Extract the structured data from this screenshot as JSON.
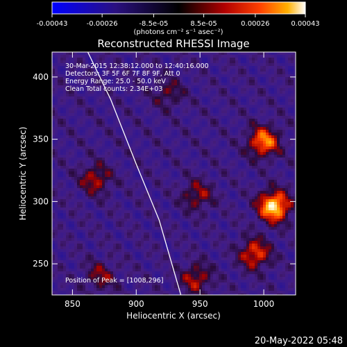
{
  "chart_data": {
    "type": "heatmap",
    "title": "Reconstructed RHESSI Image",
    "xlabel": "Heliocentric X (arcsec)",
    "ylabel": "Heliocentric Y (arcsec)",
    "xlim": [
      834,
      1025
    ],
    "ylim": [
      225,
      420
    ],
    "xticks": [
      850,
      900,
      950,
      1000
    ],
    "yticks": [
      250,
      300,
      350,
      400
    ],
    "xtick_labels": [
      "850",
      "900",
      "950",
      "1000"
    ],
    "ytick_labels": [
      "250",
      "300",
      "350",
      "400"
    ],
    "colorbar": {
      "range": [
        -0.00043,
        0.00043
      ],
      "tick_values": [
        -0.00043,
        -0.00026,
        -8.5e-05,
        8.5e-05,
        0.00026,
        0.00043
      ],
      "tick_labels": [
        "-0.00043",
        "-0.00026",
        "-8.5e-05",
        "8.5e-05",
        "0.00026",
        "0.00043"
      ],
      "unit_label": "(photons cm⁻² s⁻¹ asec⁻²)",
      "colors": [
        "#0000ff",
        "#3a1aa0",
        "#000000",
        "#a00000",
        "#ff3000",
        "#ffa000",
        "#ffffff"
      ]
    },
    "annotations": {
      "time_range": "30-Mar-2015 12:38:12.000 to 12:40:16.000",
      "detectors": "Detectors: 3F 5F 6F 7F 8F 9F, Att 0",
      "energy": "Energy Range: 25.0 - 50.0 keV",
      "clean": "Clean     Total counts: 2.34E+03",
      "peak": "Position of Peak = [1008,296]"
    },
    "limb_curve": {
      "x": [
        862,
        880,
        900,
        918,
        935
      ],
      "y": [
        420,
        382,
        330,
        285,
        225
      ]
    },
    "peak": {
      "x": 1008,
      "y": 296
    },
    "sources": [
      {
        "x": 1008,
        "y": 296,
        "intensity": 1.0
      },
      {
        "x": 1000,
        "y": 348,
        "intensity": 0.75
      },
      {
        "x": 993,
        "y": 258,
        "intensity": 0.6
      },
      {
        "x": 868,
        "y": 318,
        "intensity": 0.45
      },
      {
        "x": 948,
        "y": 305,
        "intensity": 0.4
      },
      {
        "x": 947,
        "y": 238,
        "intensity": 0.45
      },
      {
        "x": 872,
        "y": 240,
        "intensity": 0.35
      },
      {
        "x": 925,
        "y": 387,
        "intensity": 0.3
      }
    ]
  },
  "footer": {
    "timestamp": "20-May-2022 05:48"
  }
}
